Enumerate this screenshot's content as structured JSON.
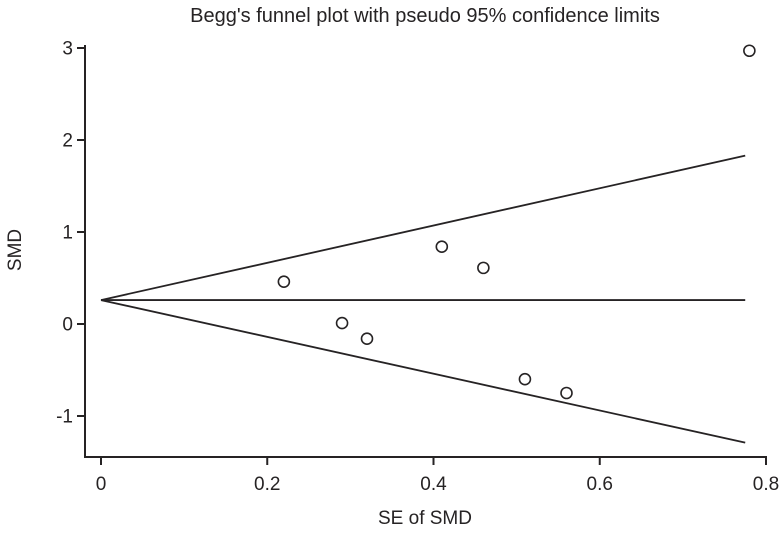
{
  "figure": {
    "title": "Begg's funnel plot with pseudo 95% confidence limits",
    "xlabel": "SE of SMD",
    "ylabel": "SMD"
  },
  "chart_data": {
    "type": "scatter",
    "title": "Begg's funnel plot with pseudo 95% confidence limits",
    "xlabel": "SE of SMD",
    "ylabel": "SMD",
    "x_ticks": [
      0,
      0.2,
      0.4,
      0.6,
      0.8
    ],
    "y_ticks": [
      3,
      2,
      1,
      0,
      -1
    ],
    "xlim": [
      -0.02,
      0.8
    ],
    "ylim": [
      -1.45,
      3.05
    ],
    "grid": false,
    "legend": "none",
    "marker": "open-circle",
    "line_color": "#262324",
    "background": "#ffffff",
    "points": [
      {
        "se": 0.78,
        "smd": 2.97
      },
      {
        "se": 0.41,
        "smd": 0.84
      },
      {
        "se": 0.46,
        "smd": 0.61
      },
      {
        "se": 0.22,
        "smd": 0.46
      },
      {
        "se": 0.29,
        "smd": 0.01
      },
      {
        "se": 0.32,
        "smd": -0.16
      },
      {
        "se": 0.51,
        "smd": -0.6
      },
      {
        "se": 0.56,
        "smd": -0.75
      }
    ],
    "funnel": {
      "pooled_smd": 0.26,
      "se_start": 0,
      "se_end": 0.775,
      "upper_limit_at_end": 1.83,
      "lower_limit_at_end": -1.29
    }
  }
}
